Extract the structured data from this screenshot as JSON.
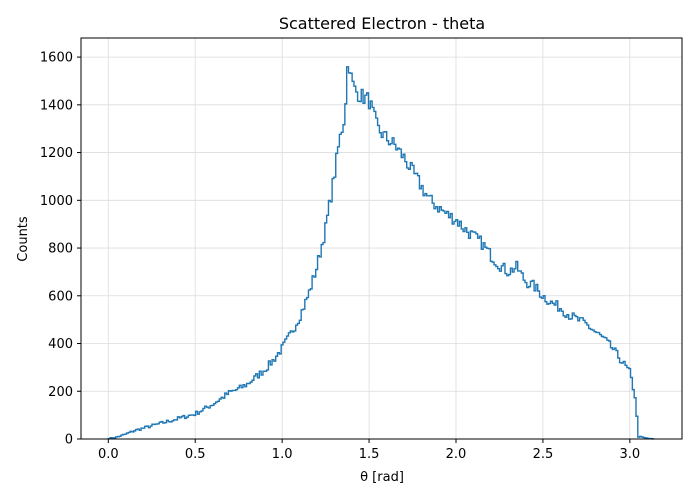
{
  "chart_data": {
    "type": "line",
    "style": "histogram-step",
    "title": "Scattered Electron - theta",
    "xlabel": "θ [rad]",
    "ylabel": "Counts",
    "xlim": [
      -0.157,
      3.3
    ],
    "ylim": [
      0,
      1680
    ],
    "xticks": [
      0.0,
      0.5,
      1.0,
      1.5,
      2.0,
      2.5,
      3.0
    ],
    "xtick_labels": [
      "0.0",
      "0.5",
      "1.0",
      "1.5",
      "2.0",
      "2.5",
      "3.0"
    ],
    "yticks": [
      0,
      200,
      400,
      600,
      800,
      1000,
      1200,
      1400,
      1600
    ],
    "ytick_labels": [
      "0",
      "200",
      "400",
      "600",
      "800",
      "1000",
      "1200",
      "1400",
      "1600"
    ],
    "grid": true,
    "color": "#1f77b4",
    "series": [
      {
        "x": [
          0.0,
          0.05,
          0.1,
          0.15,
          0.2,
          0.25,
          0.3,
          0.35,
          0.4,
          0.45,
          0.5,
          0.55,
          0.6,
          0.65,
          0.7,
          0.75,
          0.8,
          0.85,
          0.9,
          0.95,
          1.0,
          1.05,
          1.1,
          1.15,
          1.2,
          1.25,
          1.3,
          1.33,
          1.36,
          1.38,
          1.4,
          1.42,
          1.45,
          1.5,
          1.55,
          1.6,
          1.65,
          1.7,
          1.75,
          1.8,
          1.85,
          1.9,
          1.95,
          2.0,
          2.05,
          2.1,
          2.15,
          2.2,
          2.25,
          2.3,
          2.35,
          2.4,
          2.45,
          2.5,
          2.55,
          2.6,
          2.65,
          2.7,
          2.75,
          2.8,
          2.85,
          2.9,
          2.95,
          3.0,
          3.03,
          3.05,
          3.1,
          3.14
        ],
        "y": [
          2,
          8,
          20,
          35,
          45,
          55,
          65,
          75,
          85,
          95,
          105,
          125,
          145,
          170,
          195,
          210,
          230,
          260,
          290,
          330,
          380,
          440,
          510,
          600,
          720,
          880,
          1100,
          1250,
          1350,
          1600,
          1500,
          1460,
          1440,
          1420,
          1300,
          1260,
          1230,
          1180,
          1120,
          1060,
          1000,
          970,
          940,
          920,
          880,
          850,
          820,
          770,
          730,
          700,
          720,
          660,
          640,
          600,
          570,
          550,
          520,
          500,
          480,
          450,
          420,
          380,
          330,
          280,
          180,
          10,
          3,
          0
        ]
      }
    ]
  }
}
